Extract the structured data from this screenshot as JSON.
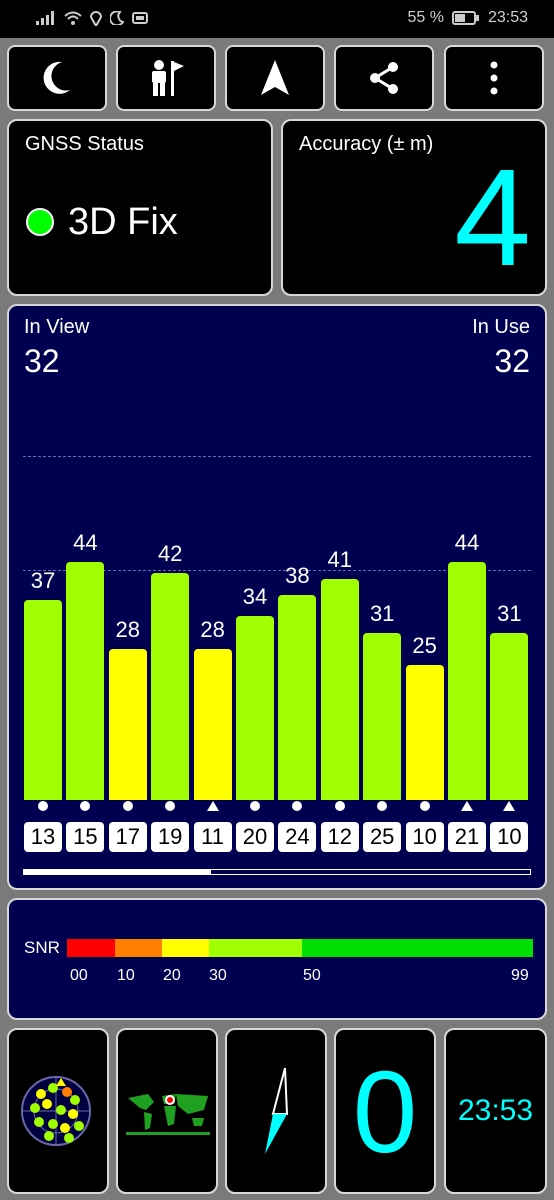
{
  "status_bar": {
    "battery": "55 %",
    "time": "23:53"
  },
  "gnss": {
    "label": "GNSS Status",
    "fix": "3D Fix"
  },
  "accuracy": {
    "label": "Accuracy (± m)",
    "value": "4"
  },
  "sats": {
    "in_view_label": "In View",
    "in_view": "32",
    "in_use_label": "In Use",
    "in_use": "32",
    "bars": [
      {
        "prn": "13",
        "snr": 37,
        "label": "37",
        "mark": "circle"
      },
      {
        "prn": "15",
        "snr": 44,
        "label": "44",
        "mark": "circle"
      },
      {
        "prn": "17",
        "snr": 28,
        "label": "28",
        "mark": "circle"
      },
      {
        "prn": "19",
        "snr": 42,
        "label": "42",
        "mark": "circle"
      },
      {
        "prn": "11",
        "snr": 28,
        "label": "28",
        "mark": "triangle"
      },
      {
        "prn": "20",
        "snr": 34,
        "label": "34",
        "mark": "circle"
      },
      {
        "prn": "24",
        "snr": 38,
        "label": "38",
        "mark": "circle"
      },
      {
        "prn": "12",
        "snr": 41,
        "label": "41",
        "mark": "circle"
      },
      {
        "prn": "25",
        "snr": 31,
        "label": "31",
        "mark": "circle"
      },
      {
        "prn": "10",
        "snr": 25,
        "label": "25",
        "mark": "circle"
      },
      {
        "prn": "21",
        "snr": 44,
        "label": "44",
        "mark": "triangle"
      },
      {
        "prn": "10",
        "snr": 31,
        "label": "31",
        "mark": "triangle"
      }
    ],
    "scroll_fraction": 0.37
  },
  "snr_legend": {
    "label": "SNR",
    "ticks": [
      "00",
      "10",
      "20",
      "30",
      "50",
      "99"
    ],
    "colors": [
      "#ff0000",
      "#ff8000",
      "#ffff00",
      "#a0ff00",
      "#00e000"
    ]
  },
  "bottom": {
    "speed": "0",
    "clock": "23:53"
  },
  "colors": {
    "cyan": "#00ffff",
    "navy": "#000050",
    "bar_green": "#a0ff00",
    "bar_yellow": "#ffff00",
    "fix_green": "#00ff00"
  }
}
